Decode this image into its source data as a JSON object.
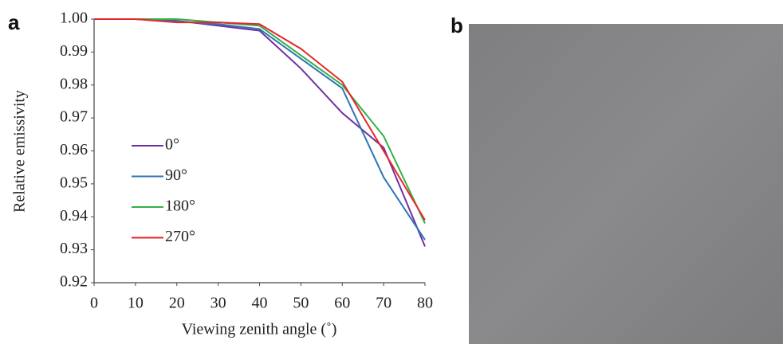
{
  "panel_labels": [
    "a",
    "b"
  ],
  "chart_data": {
    "type": "line",
    "x_label": "Viewing zenith angle (˚)",
    "y_label": "Relative emissivity",
    "x": [
      0,
      10,
      20,
      30,
      40,
      50,
      60,
      70,
      80
    ],
    "series": [
      {
        "name": "0°",
        "color": "#7030a0",
        "values": [
          1.0,
          1.0,
          0.9995,
          0.998,
          0.9965,
          0.985,
          0.9715,
          0.961,
          0.931
        ]
      },
      {
        "name": "90°",
        "color": "#2e75b6",
        "values": [
          1.0,
          1.0,
          0.9993,
          0.9985,
          0.997,
          0.988,
          0.979,
          0.952,
          0.933
        ]
      },
      {
        "name": "180°",
        "color": "#33b04a",
        "values": [
          1.0,
          1.0,
          1.0,
          0.999,
          0.998,
          0.989,
          0.98,
          0.9645,
          0.938
        ]
      },
      {
        "name": "270°",
        "color": "#e8262a",
        "values": [
          1.0,
          1.0,
          0.999,
          0.999,
          0.9985,
          0.991,
          0.981,
          0.96,
          0.939
        ]
      }
    ],
    "xlim": [
      0,
      80
    ],
    "xticks": [
      0,
      10,
      20,
      30,
      40,
      50,
      60,
      70,
      80
    ],
    "ylim": [
      0.92,
      1.0
    ],
    "yticks": [
      0.92,
      0.93,
      0.94,
      0.95,
      0.96,
      0.97,
      0.98,
      0.99,
      {
        "value": 1.0,
        "label": "1.00"
      }
    ],
    "grid": false,
    "legend": "center left"
  }
}
